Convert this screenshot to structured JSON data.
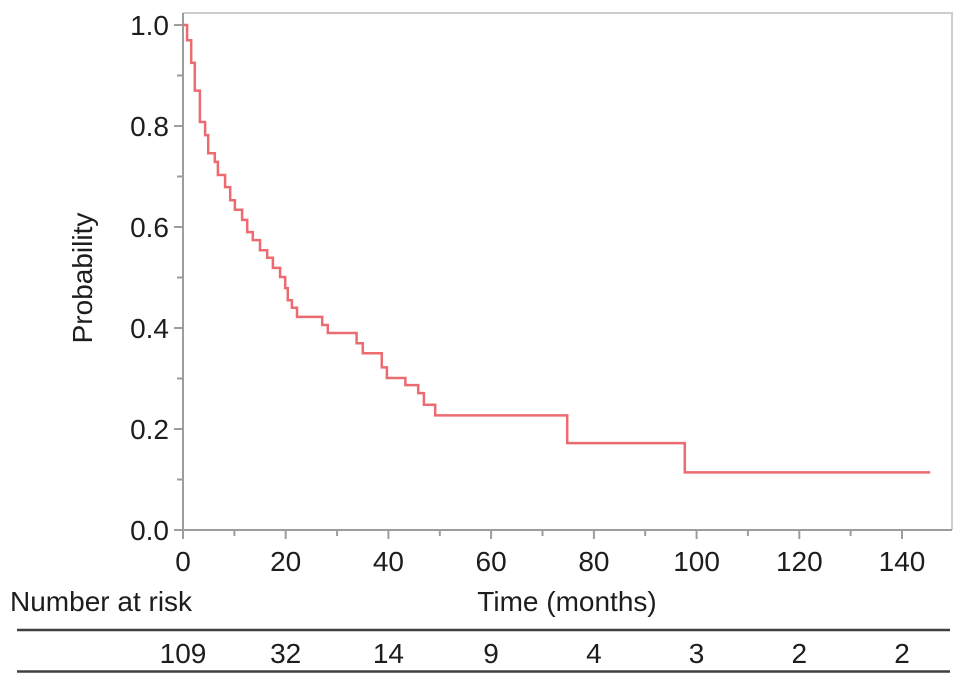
{
  "figure": {
    "background": "#ffffff"
  },
  "chart_data": {
    "type": "line",
    "variant": "kaplan-meier-step-curve",
    "title": "",
    "xlabel": "Time (months)",
    "ylabel": "Probability",
    "xlim": [
      0,
      150
    ],
    "ylim": [
      0,
      1.02
    ],
    "grid": false,
    "legend": "none",
    "x_major_ticks": [
      0,
      20,
      40,
      60,
      80,
      100,
      120,
      140
    ],
    "x_major_tick_labels": [
      "0",
      "20",
      "40",
      "60",
      "80",
      "100",
      "120",
      "140"
    ],
    "x_minor_ticks": [
      10,
      30,
      50,
      70,
      90,
      110,
      130
    ],
    "y_major_ticks": [
      0.0,
      0.2,
      0.4,
      0.6,
      0.8,
      1.0
    ],
    "y_major_tick_labels": [
      "0.0",
      "0.2",
      "0.4",
      "0.6",
      "0.8",
      "1.0"
    ],
    "y_minor_ticks": [
      0.1,
      0.3,
      0.5,
      0.7,
      0.9
    ],
    "series": [
      {
        "name": "overall-survival",
        "color": "#EC6B71",
        "end_time": 145.5,
        "steps": [
          [
            0,
            1.0
          ],
          [
            0.8,
            0.97
          ],
          [
            1.6,
            0.925
          ],
          [
            2.3,
            0.87
          ],
          [
            3.3,
            0.808
          ],
          [
            4.3,
            0.782
          ],
          [
            4.9,
            0.746
          ],
          [
            6.2,
            0.729
          ],
          [
            6.8,
            0.703
          ],
          [
            8.2,
            0.679
          ],
          [
            9.2,
            0.653
          ],
          [
            10.1,
            0.634
          ],
          [
            11.5,
            0.614
          ],
          [
            12.5,
            0.59
          ],
          [
            13.6,
            0.574
          ],
          [
            15.0,
            0.554
          ],
          [
            16.4,
            0.539
          ],
          [
            17.5,
            0.519
          ],
          [
            18.9,
            0.501
          ],
          [
            19.9,
            0.479
          ],
          [
            20.4,
            0.455
          ],
          [
            21.2,
            0.44
          ],
          [
            22.2,
            0.422
          ],
          [
            27.1,
            0.406
          ],
          [
            28.2,
            0.39
          ],
          [
            33.8,
            0.37
          ],
          [
            35.0,
            0.35
          ],
          [
            38.7,
            0.322
          ],
          [
            39.7,
            0.301
          ],
          [
            43.3,
            0.287
          ],
          [
            45.8,
            0.271
          ],
          [
            46.9,
            0.248
          ],
          [
            49.1,
            0.227
          ],
          [
            74.8,
            0.172
          ],
          [
            97.7,
            0.114
          ]
        ]
      }
    ],
    "risk_table": {
      "label": "Number at risk",
      "times": [
        0,
        20,
        40,
        60,
        80,
        100,
        120,
        140
      ],
      "counts": [
        109,
        32,
        14,
        9,
        4,
        3,
        2,
        2
      ]
    }
  },
  "colors": {
    "curve": "#EC6B71",
    "axis_line": "#9D9D9D",
    "frame_line": "#CDCDCD",
    "tick": "#9D9D9D",
    "text": "#1D1D1D",
    "risk_table_line": "#404040"
  }
}
